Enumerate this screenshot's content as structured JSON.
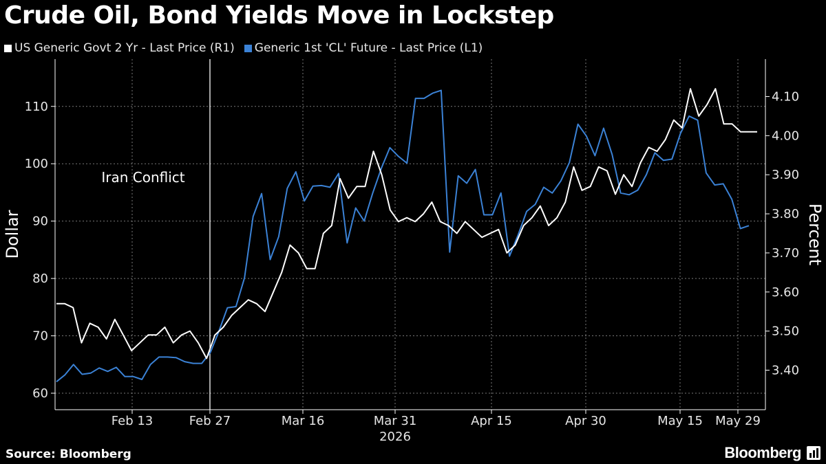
{
  "title": "Crude Oil, Bond Yields Move in Lockstep",
  "footer": {
    "source": "Source: Bloomberg",
    "brand": "Bloomberg"
  },
  "colors": {
    "background": "#000000",
    "yield_line": "#ffffff",
    "oil_line": "#3b82d6",
    "grid": "#7a7a7a"
  },
  "brand_icon": "terminal-chart-icon",
  "chart_data": {
    "type": "line",
    "xlabel_year": "2026",
    "x_ticks": [
      "Feb 13",
      "Feb 27",
      "Mar 16",
      "Mar 31",
      "Apr 15",
      "Apr 30",
      "May 15",
      "May 29"
    ],
    "left_axis": {
      "title": "Dollar",
      "ylim": [
        58,
        118
      ],
      "ticks": [
        60,
        70,
        80,
        90,
        100,
        110
      ]
    },
    "right_axis": {
      "title": "Percent",
      "ylim": [
        3.29,
        4.24
      ],
      "ticks": [
        "3.40",
        "3.50",
        "3.60",
        "3.70",
        "3.80",
        "3.90",
        "4.00",
        "4.10"
      ]
    },
    "grid": true,
    "legend_position": "top-left",
    "annotation": {
      "label": "Iran Conflict",
      "x": "Feb 27"
    },
    "series": [
      {
        "name": "US Generic Govt 2 Yr - Last Price (R1)",
        "axis": "right",
        "values": [
          3.57,
          3.57,
          3.56,
          3.47,
          3.52,
          3.51,
          3.48,
          3.53,
          3.49,
          3.45,
          3.47,
          3.49,
          3.49,
          3.51,
          3.47,
          3.49,
          3.5,
          3.47,
          3.43,
          3.49,
          3.51,
          3.54,
          3.56,
          3.58,
          3.57,
          3.55,
          3.6,
          3.65,
          3.72,
          3.7,
          3.66,
          3.66,
          3.75,
          3.77,
          3.89,
          3.84,
          3.87,
          3.87,
          3.96,
          3.9,
          3.81,
          3.78,
          3.79,
          3.78,
          3.8,
          3.83,
          3.78,
          3.77,
          3.75,
          3.78,
          3.76,
          3.74,
          3.75,
          3.76,
          3.7,
          3.72,
          3.77,
          3.79,
          3.82,
          3.77,
          3.79,
          3.83,
          3.92,
          3.86,
          3.87,
          3.92,
          3.91,
          3.85,
          3.9,
          3.87,
          3.93,
          3.97,
          3.96,
          3.99,
          4.04,
          4.02,
          4.12,
          4.05,
          4.08,
          4.12,
          4.03,
          4.03,
          4.01,
          4.01,
          4.01
        ]
      },
      {
        "name": "Generic 1st 'CL' Future - Last Price (L1)",
        "axis": "left",
        "values": [
          62.0,
          63.2,
          65.0,
          63.3,
          63.5,
          64.4,
          63.8,
          64.5,
          62.9,
          62.9,
          62.4,
          65.0,
          66.3,
          66.3,
          66.2,
          65.5,
          65.2,
          65.2,
          67.1,
          70.8,
          74.9,
          75.1,
          80.1,
          90.8,
          94.8,
          83.3,
          87.3,
          95.7,
          98.6,
          93.5,
          96.1,
          96.2,
          95.9,
          98.3,
          86.2,
          92.3,
          90.0,
          94.9,
          99.2,
          102.8,
          101.3,
          100.1,
          111.4,
          111.4,
          112.3,
          112.8,
          84.6,
          97.9,
          96.6,
          99.0,
          91.1,
          91.1,
          94.9,
          83.9,
          87.6,
          91.7,
          92.9,
          95.9,
          94.9,
          97.0,
          100.2,
          106.9,
          104.8,
          101.4,
          106.2,
          101.6,
          94.9,
          94.6,
          95.4,
          98.1,
          101.9,
          100.6,
          100.8,
          105.3,
          108.3,
          107.6,
          98.4,
          96.3,
          96.5,
          93.8,
          88.7,
          89.2
        ]
      }
    ]
  }
}
